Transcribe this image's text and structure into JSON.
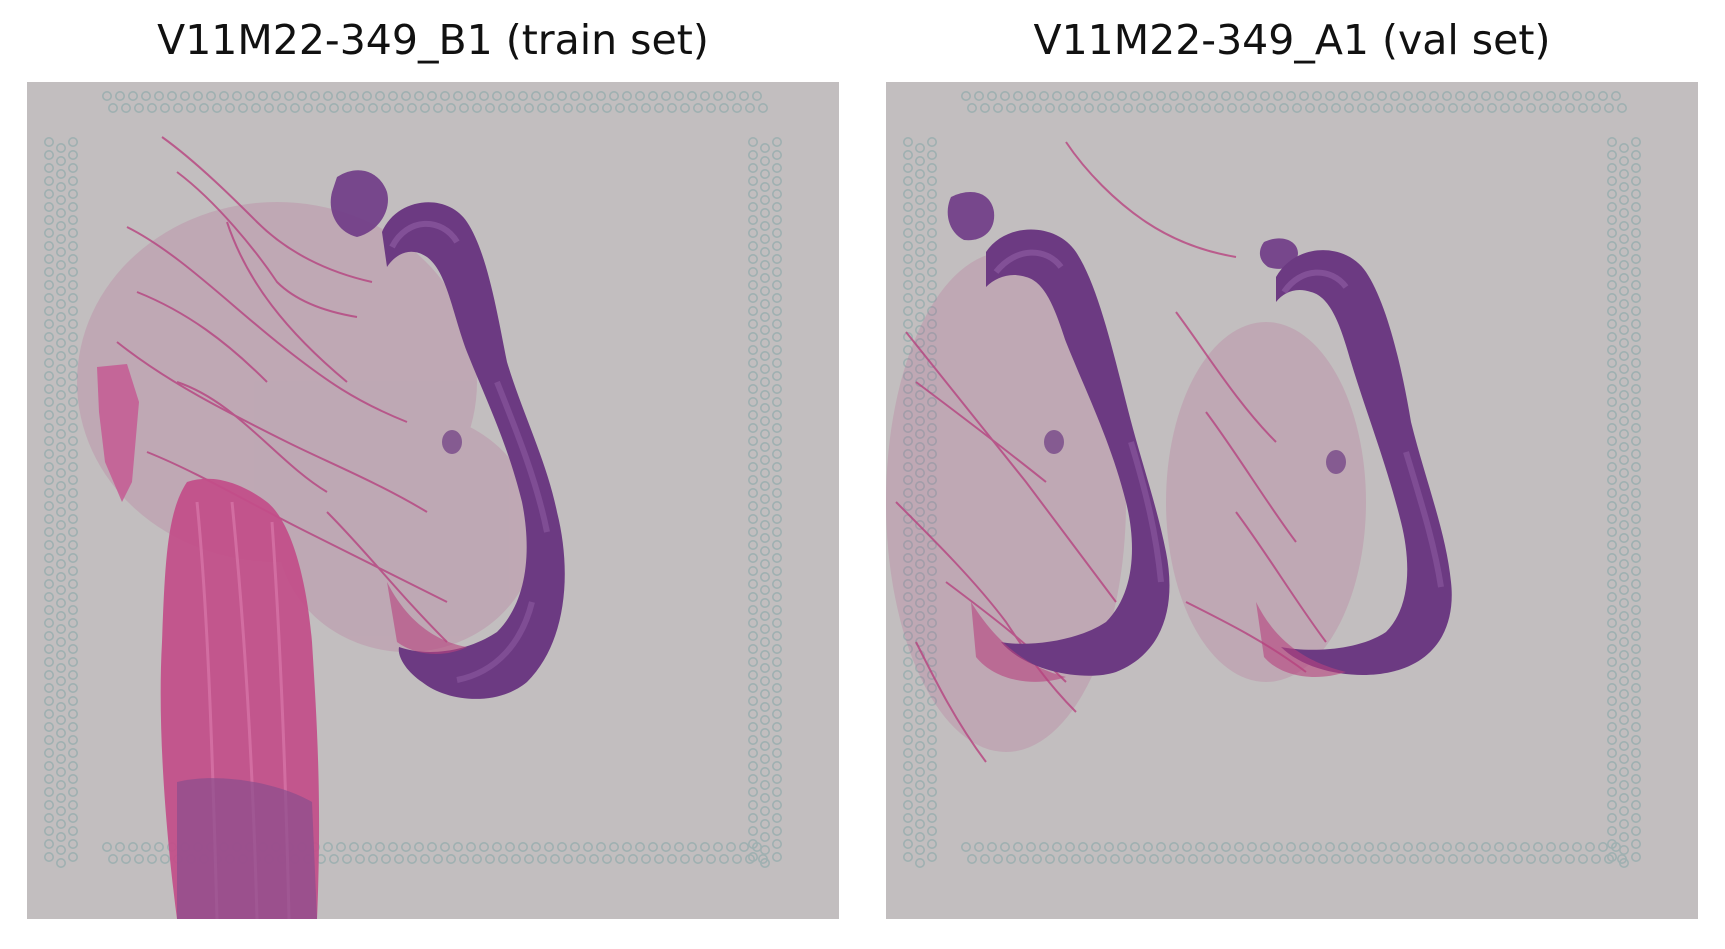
{
  "figure": {
    "panels": [
      {
        "title": "V11M22-349_B1 (train set)"
      },
      {
        "title": "V11M22-349_A1 (val set)"
      }
    ]
  },
  "colors": {
    "slide_background": "#c2bebf",
    "fiducial_spot": "#9fb0b1",
    "mucosa_purple": "#6c3a82",
    "stroma_pink": "#b83a7c",
    "muscle_magenta": "#c2508a"
  }
}
